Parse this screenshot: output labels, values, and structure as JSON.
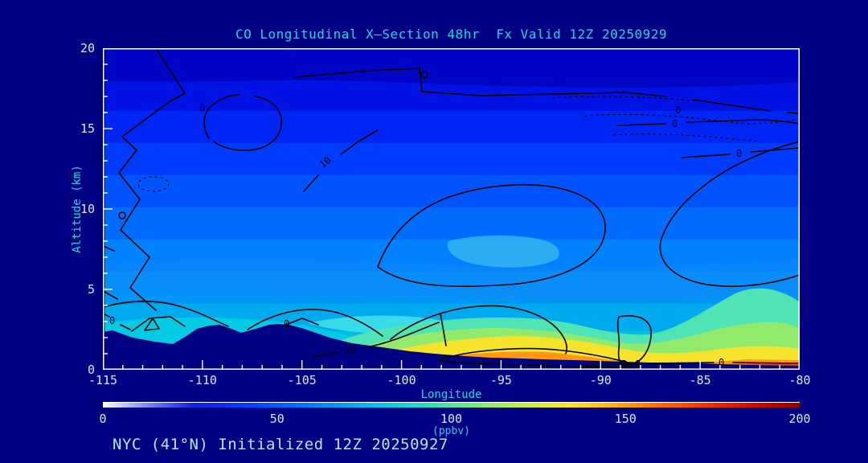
{
  "colors": {
    "background": "#000082",
    "plot_frame": "#FFFFFF",
    "title_text": "#17DCDC",
    "axis_title_text": "#17DCDC",
    "tick_label_text": "#CBEFEF",
    "footer_text": "#AFE9E9",
    "contour_line": "#000000",
    "terrain_fill": "#000082",
    "colorbar_stops": [
      [
        0,
        "#FFFFFF"
      ],
      [
        6,
        "#8090FF"
      ],
      [
        13,
        "#1020E0"
      ],
      [
        22,
        "#0048FF"
      ],
      [
        32,
        "#0090FF"
      ],
      [
        40,
        "#00C8F0"
      ],
      [
        46,
        "#20E0C8"
      ],
      [
        53,
        "#70EC88"
      ],
      [
        60,
        "#C0F048"
      ],
      [
        67,
        "#FFE424"
      ],
      [
        74,
        "#FFAC10"
      ],
      [
        81,
        "#FF6000"
      ],
      [
        88,
        "#F02800"
      ],
      [
        94,
        "#C80A00"
      ],
      [
        100,
        "#8F0000"
      ]
    ]
  },
  "title": {
    "text": "CO Longitudinal X—Section 48hr  Fx Valid 12Z 20250929"
  },
  "footer": {
    "text": "NYC (41°N) Initialized 12Z 20250927"
  },
  "chart_data": {
    "type": "heatmap",
    "subtype": "filled-contour longitude-altitude cross-section with overlaid line contours",
    "title": "CO Longitudinal X—Section 48hr  Fx Valid 12Z 20250929",
    "xlabel": "Longitude",
    "ylabel": "Altitude (km)",
    "xlim": [
      -115,
      -80
    ],
    "ylim": [
      0,
      20
    ],
    "x_tick_values": [
      -115,
      -110,
      -105,
      -100,
      -95,
      -90,
      -85,
      -80
    ],
    "x_tick_labels": [
      "-115",
      "-110",
      "-105",
      "-100",
      "-95",
      "-90",
      "-85",
      "-80"
    ],
    "x_minor_interval_deg": 1,
    "y_tick_values": [
      0,
      5,
      10,
      15,
      20
    ],
    "y_tick_labels": [
      "0",
      "5",
      "10",
      "15",
      "20"
    ],
    "y_minor_interval_km": 1,
    "grid": "off",
    "colorbar": {
      "min": 0,
      "max": 200,
      "tick_values": [
        0,
        50,
        100,
        150,
        200
      ],
      "tick_labels": [
        "0",
        "50",
        "100",
        "150",
        "200"
      ],
      "units_label": "(ppbv)",
      "position": "bottom"
    },
    "contour_line_labels": [
      "0",
      "10"
    ],
    "terrain": "dark navy surface silhouette; mountains ~2.5-2.9 km between -115 and -101, thinning to near sea level eastward to -80",
    "features": [
      "CO maximum 150-190 ppbv in lowest 1-2 km between -101 and -80 (yellow/orange/red band)",
      "orange-red core near -97 to -91 at the surface",
      "concentrations decrease with altitude; darkest blue (~25-35 ppbv) above 17 km",
      "black overlaid contours labeled 0 and 10, dotted contours (negative) in upper right"
    ],
    "estimated_values_ppbv": {
      "longitudes": [
        -115,
        -110,
        -105,
        -100,
        -95,
        -90,
        -85,
        -80
      ],
      "altitudes_km": [
        0,
        2,
        5,
        10,
        15,
        20
      ],
      "grid_rows_by_altitude": [
        [
          null,
          null,
          null,
          135,
          185,
          175,
          150,
          160
        ],
        [
          88,
          92,
          98,
          125,
          140,
          130,
          112,
          118
        ],
        [
          80,
          82,
          86,
          90,
          95,
          96,
          90,
          86
        ],
        [
          62,
          66,
          70,
          72,
          74,
          72,
          70,
          76
        ],
        [
          46,
          48,
          52,
          54,
          52,
          48,
          46,
          44
        ],
        [
          30,
          32,
          34,
          36,
          34,
          31,
          29,
          28
        ]
      ]
    }
  }
}
